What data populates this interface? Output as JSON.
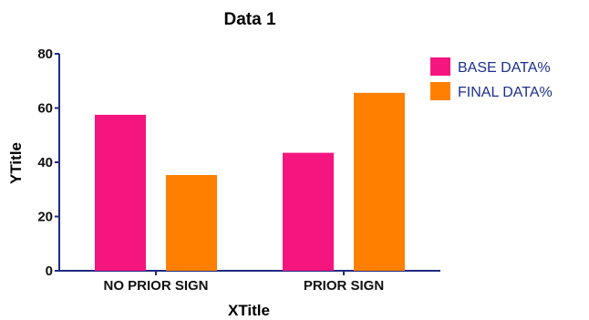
{
  "chart_data": {
    "type": "bar",
    "title": "Data 1",
    "xlabel": "XTitle",
    "ylabel": "YTitle",
    "ylim": [
      0,
      80
    ],
    "yticks": [
      0,
      20,
      40,
      60,
      80
    ],
    "categories": [
      "NO PRIOR SIGN",
      "PRIOR SIGN"
    ],
    "series": [
      {
        "name": "BASE DATA%",
        "values": [
          57.5,
          43.5
        ],
        "color": "#f5157f"
      },
      {
        "name": "FINAL DATA%",
        "values": [
          35.3,
          65.6
        ],
        "color": "#ff8000"
      }
    ],
    "grid": false,
    "legend_position": "top-right",
    "axis_color": "#1f2a80"
  }
}
